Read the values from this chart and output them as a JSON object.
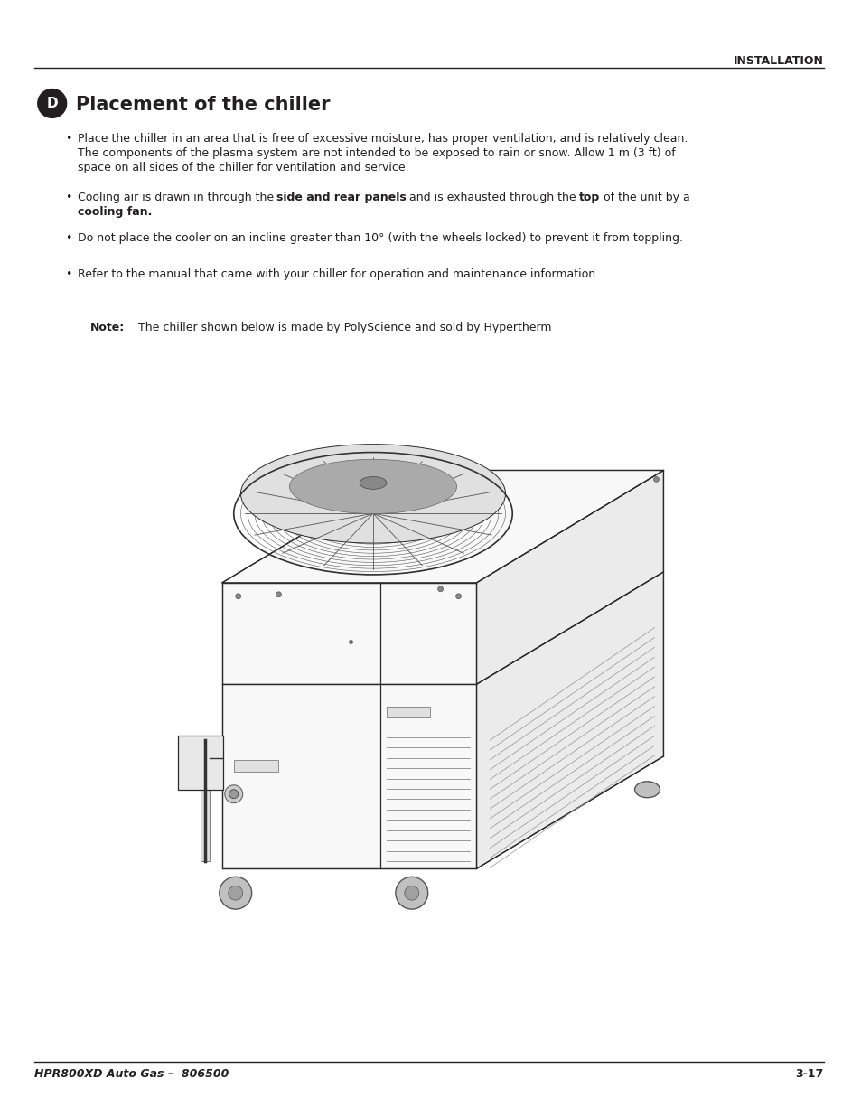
{
  "bg_color": "#ffffff",
  "header_text": "INSTALLATION",
  "footer_left": "HPR800XD Auto Gas –  806500",
  "footer_right": "3-17",
  "section_icon_label": "D",
  "section_title": "Placement of the chiller",
  "bullet1_line1": "Place the chiller in an area that is free of excessive moisture, has proper ventilation, and is relatively clean.",
  "bullet1_line2": "The components of the plasma system are not intended to be exposed to rain or snow. Allow 1 m (3 ft) of",
  "bullet1_line3": "space on all sides of the chiller for ventilation and service.",
  "bullet2_pre": "Cooling air is drawn in through the ",
  "bullet2_bold1": "side and rear panels",
  "bullet2_mid": " and is exhausted through the ",
  "bullet2_bold2": "top",
  "bullet2_post": " of the unit by a",
  "bullet2_line2_bold": "cooling fan.",
  "bullet3": "Do not place the cooler on an incline greater than 10° (with the wheels locked) to prevent it from toppling.",
  "bullet4": "Refer to the manual that came with your chiller for operation and maintenance information.",
  "note_label": "Note:",
  "note_text": "    The chiller shown below is made by PolyScience and sold by Hypertherm",
  "text_color": "#231f20",
  "font_size_header": 9,
  "font_size_title": 15,
  "font_size_body": 9,
  "font_size_footer": 9
}
